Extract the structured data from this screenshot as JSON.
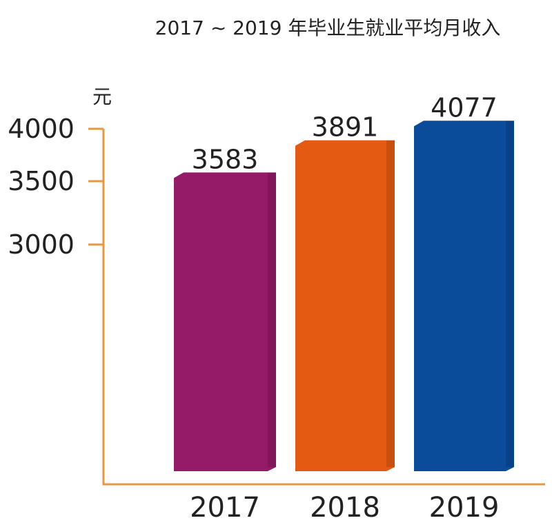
{
  "chart_data": {
    "type": "bar",
    "title": "2017 ~ 2019 年毕业生就业平均月收入",
    "ylabel": "元",
    "xlabel": "",
    "categories": [
      "2017",
      "2018",
      "2019"
    ],
    "values": [
      3583,
      3891,
      4077
    ],
    "data_labels": [
      "3583",
      "3891",
      "4077"
    ],
    "yticks": [
      3000,
      3500,
      4000
    ],
    "ytick_labels": [
      "3000",
      "3500",
      "4000"
    ],
    "ylim": [
      0,
      4100
    ],
    "axis_broken": true,
    "grid": false,
    "legend": "none",
    "colors": [
      "#951a68",
      "#e55a12",
      "#0a4b9a"
    ],
    "axis_color": "#e8963f"
  }
}
